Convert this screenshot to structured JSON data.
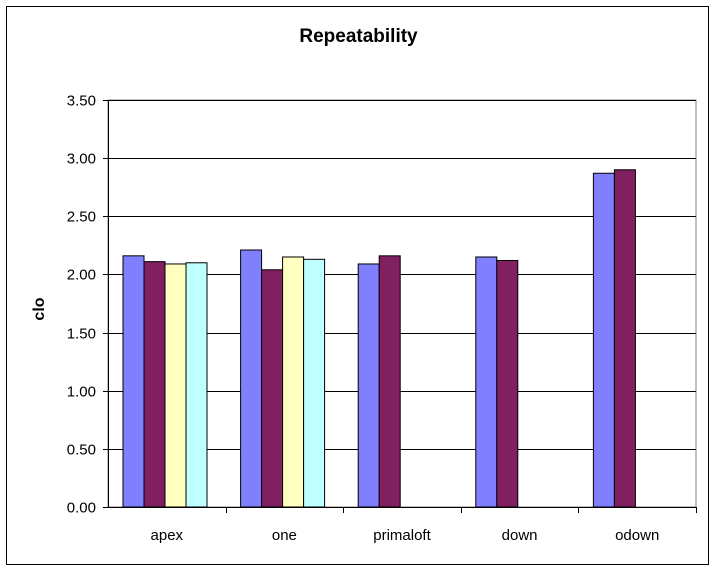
{
  "chart_data": {
    "type": "bar",
    "title": "Repeatability",
    "xlabel": "",
    "ylabel": "clo",
    "ylim": [
      0,
      3.5
    ],
    "yticks": [
      "0.00",
      "0.50",
      "1.00",
      "1.50",
      "2.00",
      "2.50",
      "3.00",
      "3.50"
    ],
    "categories": [
      "apex",
      "one",
      "primaloft",
      "down",
      "odown"
    ],
    "grid": true,
    "legend": "none",
    "series": [
      {
        "color": "#8080ff",
        "values": [
          2.16,
          2.21,
          2.09,
          2.15,
          2.87
        ]
      },
      {
        "color": "#802060",
        "values": [
          2.11,
          2.04,
          2.16,
          2.12,
          2.9
        ]
      },
      {
        "color": "#ffffc0",
        "values": [
          2.09,
          2.15,
          null,
          null,
          null
        ]
      },
      {
        "color": "#c0ffff",
        "values": [
          2.1,
          2.13,
          null,
          null,
          null
        ]
      }
    ]
  }
}
